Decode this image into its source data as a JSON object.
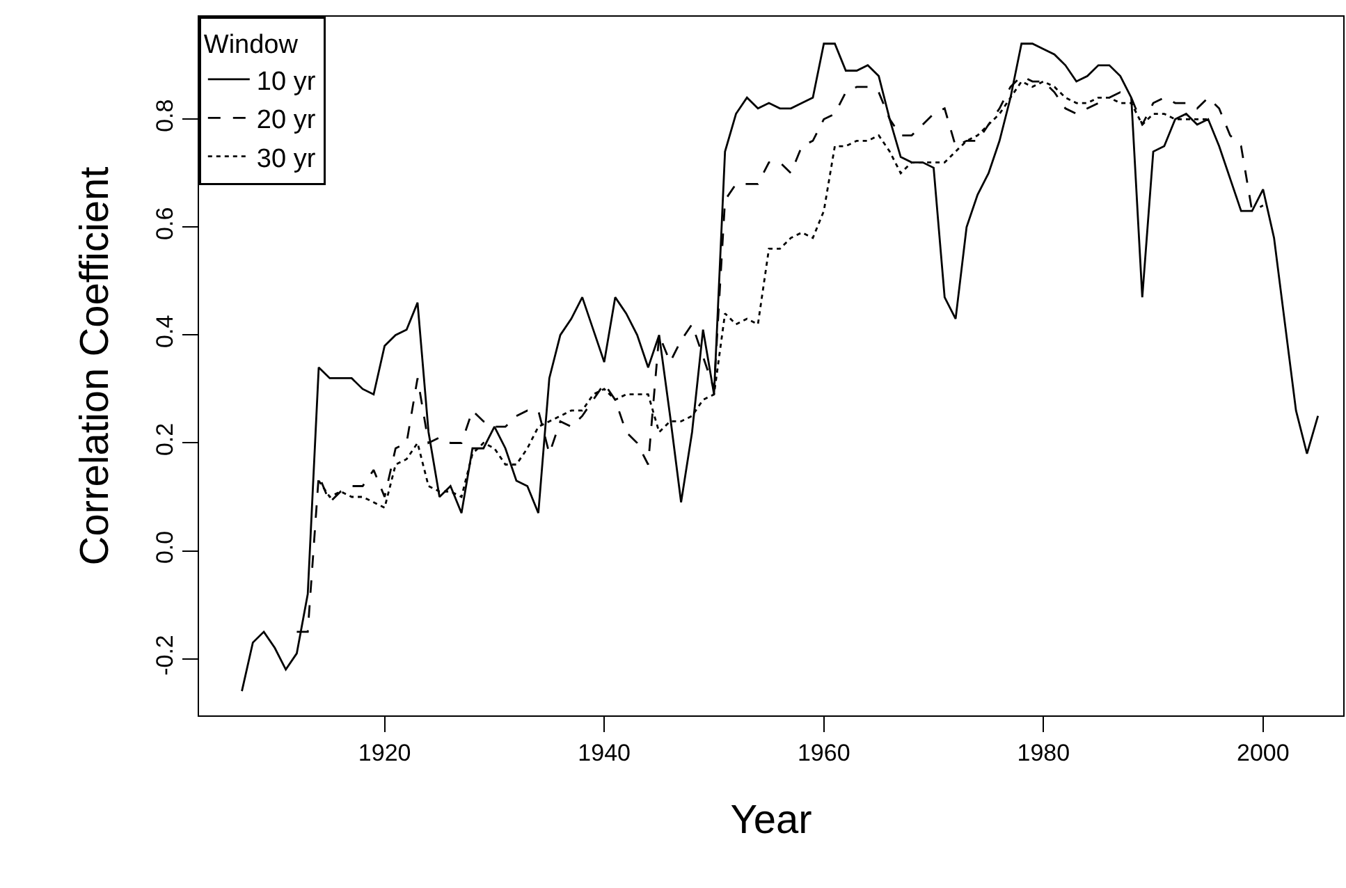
{
  "chart_data": {
    "type": "line",
    "xlabel": "Year",
    "ylabel": "Correlation Coefficient",
    "legend_title": "Window",
    "legend": "top left",
    "grid": false,
    "marker": "none",
    "xlim": [
      1903.1,
      2007.3
    ],
    "xticks": [
      1920,
      1940,
      1960,
      1980,
      2000
    ],
    "ylim": [
      -0.305,
      0.99
    ],
    "yticks": [
      {
        "value": -0.2,
        "label": "-0.2"
      },
      {
        "value": 0,
        "label": "0.0"
      },
      {
        "value": 0.2,
        "label": "0.2"
      },
      {
        "value": 0.4,
        "label": "0.4"
      },
      {
        "value": 0.6,
        "label": "0.6"
      },
      {
        "value": 0.8,
        "label": "0.8"
      }
    ],
    "series": [
      {
        "name": "10 yr",
        "color": "#000000",
        "line_style": "solid",
        "x": [
          1907,
          1908,
          1909,
          1910,
          1911,
          1912,
          1913,
          1914,
          1915,
          1916,
          1917,
          1918,
          1919,
          1920,
          1921,
          1922,
          1923,
          1924,
          1925,
          1926,
          1927,
          1928,
          1929,
          1930,
          1931,
          1932,
          1933,
          1934,
          1935,
          1936,
          1937,
          1938,
          1939,
          1940,
          1941,
          1942,
          1943,
          1944,
          1945,
          1946,
          1947,
          1948,
          1949,
          1950,
          1951,
          1952,
          1953,
          1954,
          1955,
          1956,
          1957,
          1958,
          1959,
          1960,
          1961,
          1962,
          1963,
          1964,
          1965,
          1966,
          1967,
          1968,
          1969,
          1970,
          1971,
          1972,
          1973,
          1974,
          1975,
          1976,
          1977,
          1978,
          1979,
          1980,
          1981,
          1982,
          1983,
          1984,
          1985,
          1986,
          1987,
          1988,
          1989,
          1990,
          1991,
          1992,
          1993,
          1994,
          1995,
          1996,
          1997,
          1998,
          1999,
          2000,
          2001,
          2002,
          2003,
          2004,
          2005
        ],
        "values": [
          -0.26,
          -0.17,
          -0.15,
          -0.18,
          -0.22,
          -0.19,
          -0.08,
          0.34,
          0.32,
          0.32,
          0.32,
          0.3,
          0.29,
          0.38,
          0.4,
          0.41,
          0.46,
          0.22,
          0.1,
          0.12,
          0.07,
          0.19,
          0.19,
          0.23,
          0.19,
          0.13,
          0.12,
          0.07,
          0.32,
          0.4,
          0.43,
          0.47,
          0.41,
          0.35,
          0.47,
          0.44,
          0.4,
          0.34,
          0.4,
          0.25,
          0.09,
          0.22,
          0.41,
          0.29,
          0.74,
          0.81,
          0.84,
          0.82,
          0.83,
          0.82,
          0.82,
          0.83,
          0.84,
          0.94,
          0.94,
          0.89,
          0.89,
          0.9,
          0.88,
          0.8,
          0.73,
          0.72,
          0.72,
          0.71,
          0.47,
          0.43,
          0.6,
          0.66,
          0.7,
          0.76,
          0.84,
          0.94,
          0.94,
          0.93,
          0.92,
          0.9,
          0.87,
          0.88,
          0.9,
          0.9,
          0.88,
          0.84,
          0.47,
          0.74,
          0.75,
          0.8,
          0.81,
          0.79,
          0.8,
          0.75,
          0.69,
          0.63,
          0.63,
          0.67,
          0.58,
          0.42,
          0.26,
          0.18,
          0.25
        ]
      },
      {
        "name": "20 yr",
        "color": "#000000",
        "line_style": "dashed",
        "x": [
          1912,
          1913,
          1914,
          1915,
          1916,
          1917,
          1918,
          1919,
          1920,
          1921,
          1922,
          1923,
          1924,
          1925,
          1926,
          1927,
          1928,
          1929,
          1930,
          1931,
          1932,
          1933,
          1934,
          1935,
          1936,
          1937,
          1938,
          1939,
          1940,
          1941,
          1942,
          1943,
          1944,
          1945,
          1946,
          1947,
          1948,
          1949,
          1950,
          1951,
          1952,
          1953,
          1954,
          1955,
          1956,
          1957,
          1958,
          1959,
          1960,
          1961,
          1962,
          1963,
          1964,
          1965,
          1966,
          1967,
          1968,
          1969,
          1970,
          1971,
          1972,
          1973,
          1974,
          1975,
          1976,
          1977,
          1978,
          1979,
          1980,
          1981,
          1982,
          1983,
          1984,
          1985,
          1986,
          1987,
          1988,
          1989,
          1990,
          1991,
          1992,
          1993,
          1994,
          1995,
          1996,
          1997,
          1998,
          1999,
          2000
        ],
        "values": [
          -0.15,
          -0.15,
          0.14,
          0.09,
          0.11,
          0.12,
          0.12,
          0.15,
          0.1,
          0.19,
          0.2,
          0.32,
          0.2,
          0.21,
          0.2,
          0.2,
          0.26,
          0.24,
          0.23,
          0.23,
          0.25,
          0.26,
          0.26,
          0.18,
          0.24,
          0.23,
          0.25,
          0.28,
          0.31,
          0.28,
          0.22,
          0.2,
          0.16,
          0.4,
          0.35,
          0.39,
          0.42,
          0.36,
          0.3,
          0.65,
          0.68,
          0.68,
          0.68,
          0.72,
          0.72,
          0.7,
          0.75,
          0.76,
          0.8,
          0.81,
          0.85,
          0.86,
          0.86,
          0.85,
          0.8,
          0.77,
          0.77,
          0.79,
          0.81,
          0.82,
          0.75,
          0.76,
          0.76,
          0.79,
          0.82,
          0.86,
          0.88,
          0.87,
          0.87,
          0.85,
          0.82,
          0.81,
          0.82,
          0.83,
          0.84,
          0.85,
          0.84,
          0.79,
          0.83,
          0.84,
          0.83,
          0.83,
          0.82,
          0.84,
          0.82,
          0.77,
          0.75,
          0.63,
          0.64
        ]
      },
      {
        "name": "30 yr",
        "color": "#000000",
        "line_style": "dotted",
        "x": [
          1914,
          1915,
          1916,
          1917,
          1918,
          1919,
          1920,
          1921,
          1922,
          1923,
          1924,
          1925,
          1926,
          1927,
          1928,
          1929,
          1930,
          1931,
          1932,
          1933,
          1934,
          1935,
          1936,
          1937,
          1938,
          1939,
          1940,
          1941,
          1942,
          1943,
          1944,
          1945,
          1946,
          1947,
          1948,
          1949,
          1950,
          1951,
          1952,
          1953,
          1954,
          1955,
          1956,
          1957,
          1958,
          1959,
          1960,
          1961,
          1962,
          1963,
          1964,
          1965,
          1966,
          1967,
          1968,
          1969,
          1970,
          1971,
          1972,
          1973,
          1974,
          1975,
          1976,
          1977,
          1978,
          1979,
          1980,
          1981,
          1982,
          1983,
          1984,
          1985,
          1986,
          1987,
          1988,
          1989,
          1990,
          1991,
          1992,
          1993,
          1994,
          1995
        ],
        "values": [
          0.13,
          0.1,
          0.11,
          0.1,
          0.1,
          0.09,
          0.08,
          0.16,
          0.17,
          0.2,
          0.12,
          0.11,
          0.11,
          0.1,
          0.18,
          0.2,
          0.19,
          0.16,
          0.16,
          0.19,
          0.23,
          0.24,
          0.25,
          0.26,
          0.26,
          0.29,
          0.3,
          0.28,
          0.29,
          0.29,
          0.29,
          0.22,
          0.24,
          0.24,
          0.25,
          0.28,
          0.29,
          0.44,
          0.42,
          0.43,
          0.42,
          0.56,
          0.56,
          0.58,
          0.59,
          0.58,
          0.63,
          0.75,
          0.75,
          0.76,
          0.76,
          0.77,
          0.74,
          0.7,
          0.72,
          0.72,
          0.72,
          0.72,
          0.74,
          0.76,
          0.77,
          0.79,
          0.81,
          0.84,
          0.87,
          0.86,
          0.87,
          0.86,
          0.84,
          0.83,
          0.83,
          0.84,
          0.84,
          0.83,
          0.83,
          0.79,
          0.81,
          0.81,
          0.8,
          0.8,
          0.8,
          0.8
        ]
      }
    ]
  }
}
